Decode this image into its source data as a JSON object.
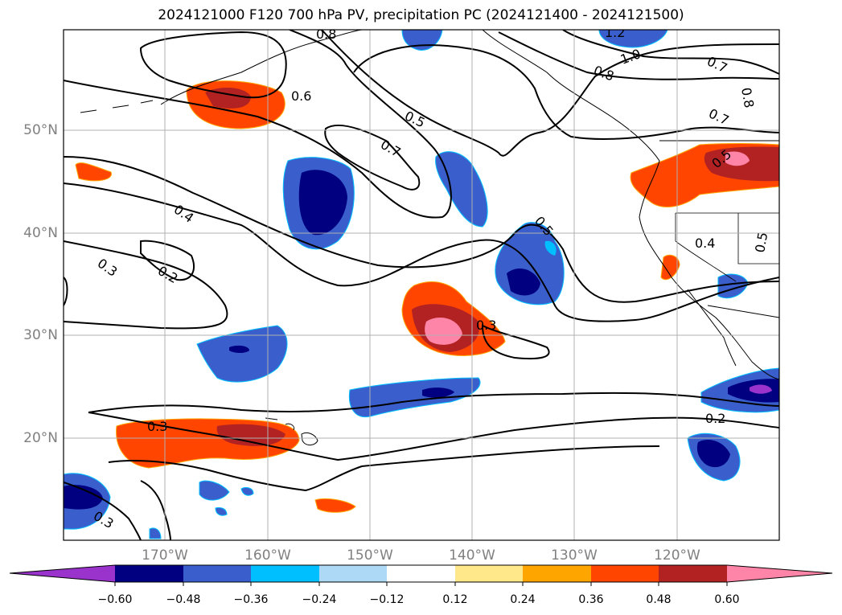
{
  "title": "2024121000 F120 700 hPa PV, precipitation PC (2024121400 - 2024121500)",
  "map": {
    "lat_labels": [
      "50°N",
      "40°N",
      "30°N",
      "20°N"
    ],
    "lon_labels": [
      "170°W",
      "160°W",
      "150°W",
      "140°W",
      "130°W",
      "120°W"
    ],
    "contour_labels": [
      "0.8",
      "1.2",
      "1.0",
      "0.7",
      "0.8",
      "0.8",
      "0.7",
      "0.6",
      "0.5",
      "0.7",
      "0.4",
      "0.3",
      "0.2",
      "0.5",
      "0.4",
      "0.5",
      "0.5",
      "0.3",
      "0.3",
      "0.2",
      "0.3"
    ]
  },
  "colorbar": {
    "ticks": [
      "−0.60",
      "−0.48",
      "−0.36",
      "−0.24",
      "−0.12",
      "0.12",
      "0.24",
      "0.36",
      "0.48",
      "0.60"
    ],
    "colors": [
      "#9933cc",
      "#000080",
      "#3a5fcd",
      "#00bfff",
      "#add8f6",
      "#ffffff",
      "#ffe88a",
      "#ffa500",
      "#ff4500",
      "#b22222",
      "#ff85a8"
    ]
  }
}
